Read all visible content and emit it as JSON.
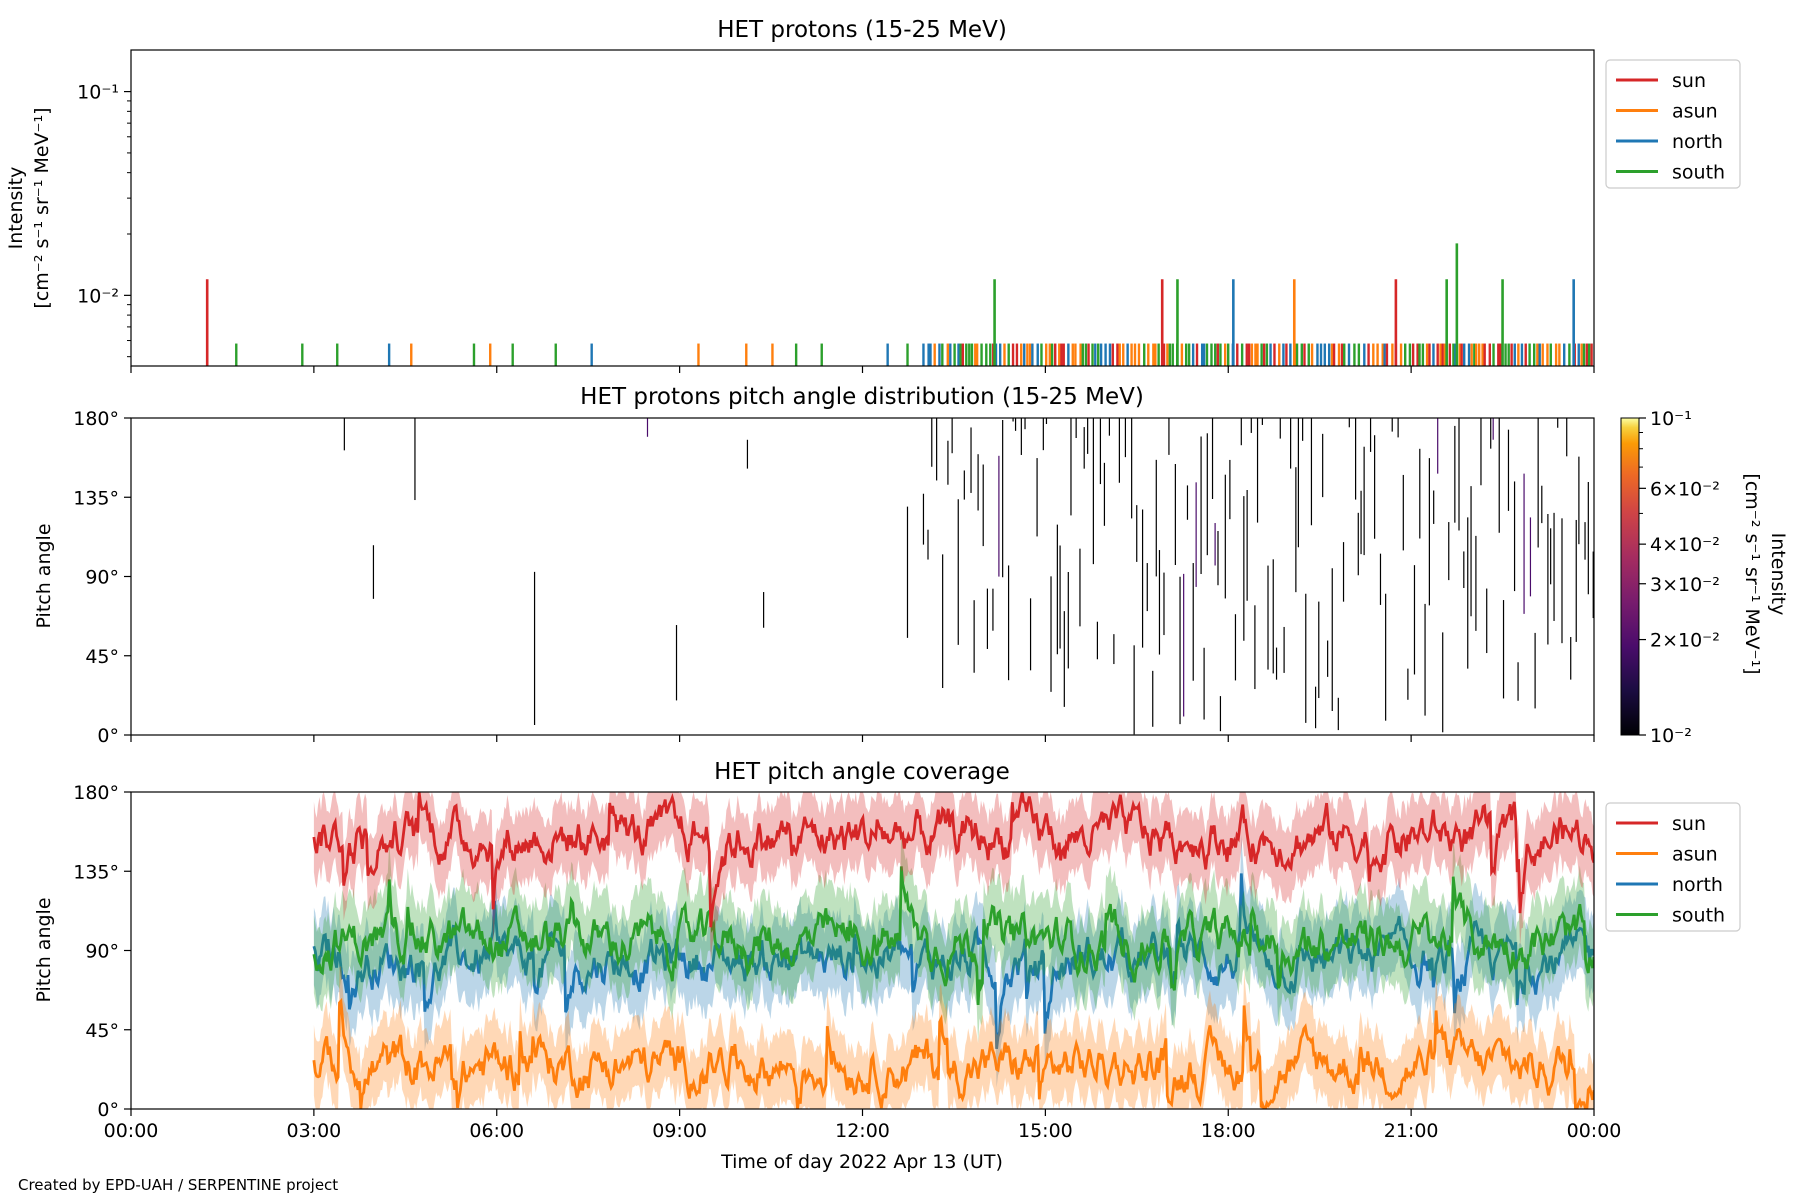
{
  "footer": "Created by EPD-UAH / SERPENTINE project",
  "chart_data": [
    {
      "type": "line",
      "title": "HET protons (15-25 MeV)",
      "ylabel_line1": "Intensity",
      "ylabel_line2": "[cm⁻² s⁻¹ sr⁻¹ MeV⁻¹]",
      "yscale": "log",
      "ylim": [
        0.0045,
        0.16
      ],
      "ytick_labels": [
        "10⁻¹",
        "10⁻²"
      ],
      "xlim_hours": [
        0,
        24
      ],
      "legend_position": "right-top",
      "legend": [
        {
          "name": "sun",
          "color": "#d62728"
        },
        {
          "name": "asun",
          "color": "#ff7f0e"
        },
        {
          "name": "north",
          "color": "#1f77b4"
        },
        {
          "name": "south",
          "color": "#2ca02c"
        }
      ],
      "baseline_value": 0.0058,
      "spike_value": 0.012,
      "peak_value": 0.018,
      "tall_spikes": [
        {
          "time": "01:15",
          "series": "sun",
          "value": 0.012
        },
        {
          "time": "14:10",
          "series": "south",
          "value": 0.012
        },
        {
          "time": "16:55",
          "series": "sun",
          "value": 0.012
        },
        {
          "time": "17:10",
          "series": "south",
          "value": 0.012
        },
        {
          "time": "18:05",
          "series": "north",
          "value": 0.012
        },
        {
          "time": "19:05",
          "series": "asun",
          "value": 0.012
        },
        {
          "time": "20:45",
          "series": "sun",
          "value": 0.012
        },
        {
          "time": "21:35",
          "series": "south",
          "value": 0.012
        },
        {
          "time": "21:45",
          "series": "south",
          "value": 0.018
        },
        {
          "time": "22:30",
          "series": "south",
          "value": 0.012
        },
        {
          "time": "23:40",
          "series": "north",
          "value": 0.012
        }
      ]
    },
    {
      "type": "heatmap",
      "title": "HET protons pitch angle distribution (15-25 MeV)",
      "ylabel": "Pitch angle",
      "ylim": [
        0,
        180
      ],
      "ytick_labels": [
        "180°",
        "135°",
        "90°",
        "45°",
        "0°"
      ],
      "xlim_hours": [
        0,
        24
      ],
      "colorbar": {
        "scale": "log",
        "range": [
          0.01,
          0.1
        ],
        "colormap": "inferno",
        "label_line1": "Intensity",
        "label_line2": "[cm⁻² s⁻¹ sr⁻¹ MeV⁻¹]",
        "tick_labels": [
          "10⁻¹",
          "6×10⁻²",
          "4×10⁻²",
          "3×10⁻²",
          "2×10⁻²",
          "10⁻²"
        ]
      }
    },
    {
      "type": "line",
      "title": "HET pitch angle coverage",
      "ylabel": "Pitch angle",
      "ylim": [
        0,
        180
      ],
      "ytick_labels": [
        "180°",
        "135°",
        "90°",
        "45°",
        "0°"
      ],
      "xlim_hours": [
        0,
        24
      ],
      "data_start": "03:00",
      "xlabel": "Time of day 2022 Apr 13 (UT)",
      "xtick_labels": [
        "00:00",
        "03:00",
        "06:00",
        "09:00",
        "12:00",
        "15:00",
        "18:00",
        "21:00",
        "00:00"
      ],
      "legend_position": "right-top",
      "legend": [
        {
          "name": "sun",
          "color": "#d62728"
        },
        {
          "name": "asun",
          "color": "#ff7f0e"
        },
        {
          "name": "north",
          "color": "#1f77b4"
        },
        {
          "name": "south",
          "color": "#2ca02c"
        }
      ],
      "series": [
        {
          "name": "sun",
          "color": "#d62728",
          "mean": 155,
          "half_width": 20
        },
        {
          "name": "asun",
          "color": "#ff7f0e",
          "mean": 25,
          "half_width": 20
        },
        {
          "name": "north",
          "color": "#1f77b4",
          "mean": 85,
          "half_width": 22
        },
        {
          "name": "south",
          "color": "#2ca02c",
          "mean": 95,
          "half_width": 22
        }
      ]
    }
  ]
}
